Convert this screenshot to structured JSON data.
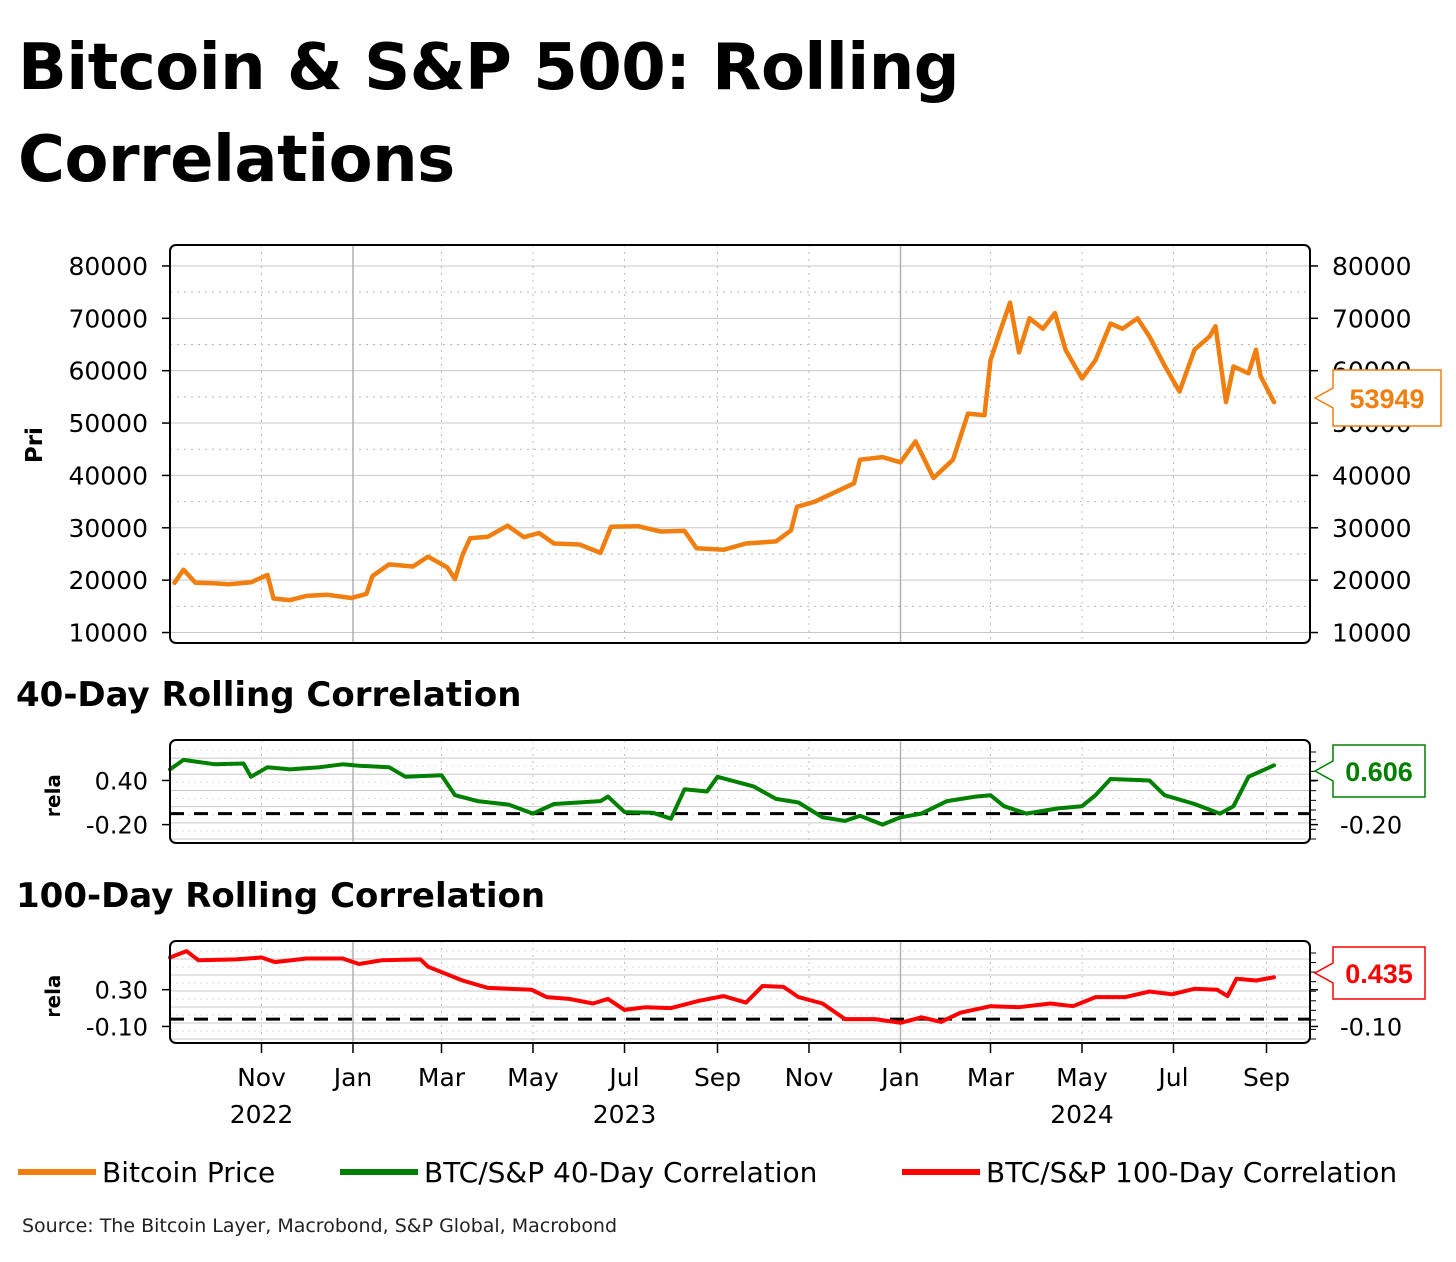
{
  "title": "Bitcoin & S&P 500: Rolling Correlations",
  "source": "Source: The Bitcoin Layer, Macrobond, S&P Global, Macrobond",
  "colors": {
    "bitcoin": "#f07f0f",
    "corr40": "#008000",
    "corr100": "#ff0000"
  },
  "legend": [
    {
      "label": "Bitcoin Price",
      "color": "#f07f0f"
    },
    {
      "label": "BTC/S&P 40-Day Correlation",
      "color": "#008000"
    },
    {
      "label": "BTC/S&P 100-Day Correlation",
      "color": "#ff0000"
    }
  ],
  "x_axis": {
    "months": [
      "Nov",
      "Jan",
      "Mar",
      "May",
      "Jul",
      "Sep",
      "Nov",
      "Jan",
      "Mar",
      "May",
      "Jul",
      "Sep"
    ],
    "month_dates": [
      "2022-11-01",
      "2023-01-01",
      "2023-03-01",
      "2023-05-01",
      "2023-07-01",
      "2023-09-01",
      "2023-11-01",
      "2024-01-01",
      "2024-03-01",
      "2024-05-01",
      "2024-07-01",
      "2024-09-01"
    ],
    "years": [
      {
        "label": "2022",
        "date": "2022-11-01"
      },
      {
        "label": "2023",
        "date": "2023-07-01"
      },
      {
        "label": "2024",
        "date": "2024-05-01"
      }
    ],
    "range": [
      "2022-09-01",
      "2024-09-30"
    ]
  },
  "chart_data": [
    {
      "type": "line",
      "ylabel": "Bitcoin Price, USD",
      "ylim": [
        8000,
        84000
      ],
      "yticks": [
        10000,
        20000,
        30000,
        40000,
        50000,
        60000,
        70000,
        80000
      ],
      "tick_labels": [
        "10000",
        "20000",
        "30000",
        "40000",
        "50000",
        "60000",
        "70000",
        "80000"
      ],
      "grid": true,
      "series": [
        {
          "name": "Bitcoin Price",
          "last_value_label": "53949",
          "points": [
            [
              "2022-09-04",
              19500
            ],
            [
              "2022-09-10",
              22000
            ],
            [
              "2022-09-18",
              19500
            ],
            [
              "2022-09-30",
              19400
            ],
            [
              "2022-10-10",
              19200
            ],
            [
              "2022-10-25",
              19600
            ],
            [
              "2022-11-05",
              21000
            ],
            [
              "2022-11-09",
              16500
            ],
            [
              "2022-11-20",
              16200
            ],
            [
              "2022-12-01",
              17000
            ],
            [
              "2022-12-15",
              17200
            ],
            [
              "2022-12-31",
              16600
            ],
            [
              "2023-01-10",
              17400
            ],
            [
              "2023-01-14",
              20800
            ],
            [
              "2023-01-25",
              23000
            ],
            [
              "2023-02-10",
              22600
            ],
            [
              "2023-02-20",
              24500
            ],
            [
              "2023-03-05",
              22400
            ],
            [
              "2023-03-10",
              20200
            ],
            [
              "2023-03-15",
              24800
            ],
            [
              "2023-03-20",
              28000
            ],
            [
              "2023-04-01",
              28300
            ],
            [
              "2023-04-14",
              30400
            ],
            [
              "2023-04-25",
              28200
            ],
            [
              "2023-05-05",
              29000
            ],
            [
              "2023-05-15",
              27000
            ],
            [
              "2023-06-01",
              26800
            ],
            [
              "2023-06-15",
              25200
            ],
            [
              "2023-06-22",
              30200
            ],
            [
              "2023-07-10",
              30300
            ],
            [
              "2023-07-25",
              29300
            ],
            [
              "2023-08-10",
              29400
            ],
            [
              "2023-08-18",
              26100
            ],
            [
              "2023-09-05",
              25800
            ],
            [
              "2023-09-20",
              27000
            ],
            [
              "2023-10-10",
              27400
            ],
            [
              "2023-10-20",
              29500
            ],
            [
              "2023-10-24",
              34000
            ],
            [
              "2023-11-05",
              35000
            ],
            [
              "2023-11-20",
              37000
            ],
            [
              "2023-12-01",
              38500
            ],
            [
              "2023-12-05",
              43000
            ],
            [
              "2023-12-20",
              43500
            ],
            [
              "2024-01-01",
              42500
            ],
            [
              "2024-01-11",
              46500
            ],
            [
              "2024-01-23",
              39500
            ],
            [
              "2024-02-05",
              43000
            ],
            [
              "2024-02-15",
              51800
            ],
            [
              "2024-02-26",
              51500
            ],
            [
              "2024-03-01",
              62000
            ],
            [
              "2024-03-08",
              68000
            ],
            [
              "2024-03-14",
              73000
            ],
            [
              "2024-03-20",
              63500
            ],
            [
              "2024-03-27",
              70000
            ],
            [
              "2024-04-05",
              68000
            ],
            [
              "2024-04-13",
              71000
            ],
            [
              "2024-04-20",
              64000
            ],
            [
              "2024-05-01",
              58500
            ],
            [
              "2024-05-10",
              62000
            ],
            [
              "2024-05-20",
              69000
            ],
            [
              "2024-05-28",
              68000
            ],
            [
              "2024-06-07",
              70000
            ],
            [
              "2024-06-15",
              66500
            ],
            [
              "2024-06-25",
              61000
            ],
            [
              "2024-07-05",
              56000
            ],
            [
              "2024-07-15",
              64000
            ],
            [
              "2024-07-25",
              66500
            ],
            [
              "2024-07-29",
              68500
            ],
            [
              "2024-08-05",
              54000
            ],
            [
              "2024-08-10",
              60800
            ],
            [
              "2024-08-20",
              59500
            ],
            [
              "2024-08-25",
              64000
            ],
            [
              "2024-08-28",
              59000
            ],
            [
              "2024-09-06",
              54000
            ]
          ]
        }
      ]
    },
    {
      "type": "line",
      "title": "40-Day Rolling Correlation",
      "ylabel": "correlation",
      "ylim": [
        -0.45,
        0.95
      ],
      "yticks": [
        0.4,
        -0.2
      ],
      "tick_labels": [
        "0.40",
        "-0.20"
      ],
      "reference_line": -0.05,
      "grid": true,
      "series": [
        {
          "name": "BTC/S&P 40-Day Correlation",
          "last_value_label": "0.606",
          "points": [
            [
              "2022-09-01",
              0.55
            ],
            [
              "2022-09-10",
              0.68
            ],
            [
              "2022-10-01",
              0.62
            ],
            [
              "2022-10-20",
              0.63
            ],
            [
              "2022-10-25",
              0.45
            ],
            [
              "2022-11-05",
              0.58
            ],
            [
              "2022-11-20",
              0.55
            ],
            [
              "2022-12-10",
              0.58
            ],
            [
              "2022-12-25",
              0.62
            ],
            [
              "2023-01-05",
              0.6
            ],
            [
              "2023-01-25",
              0.58
            ],
            [
              "2023-02-05",
              0.45
            ],
            [
              "2023-03-01",
              0.47
            ],
            [
              "2023-03-10",
              0.2
            ],
            [
              "2023-03-25",
              0.12
            ],
            [
              "2023-04-15",
              0.07
            ],
            [
              "2023-05-01",
              -0.05
            ],
            [
              "2023-05-15",
              0.08
            ],
            [
              "2023-06-15",
              0.12
            ],
            [
              "2023-06-20",
              0.18
            ],
            [
              "2023-07-01",
              -0.03
            ],
            [
              "2023-07-20",
              -0.04
            ],
            [
              "2023-08-01",
              -0.12
            ],
            [
              "2023-08-10",
              0.28
            ],
            [
              "2023-08-25",
              0.25
            ],
            [
              "2023-09-01",
              0.45
            ],
            [
              "2023-09-25",
              0.32
            ],
            [
              "2023-10-10",
              0.15
            ],
            [
              "2023-10-25",
              0.1
            ],
            [
              "2023-11-10",
              -0.1
            ],
            [
              "2023-11-25",
              -0.15
            ],
            [
              "2023-12-05",
              -0.08
            ],
            [
              "2023-12-20",
              -0.2
            ],
            [
              "2024-01-01",
              -0.1
            ],
            [
              "2024-01-15",
              -0.05
            ],
            [
              "2024-02-01",
              0.12
            ],
            [
              "2024-02-20",
              0.18
            ],
            [
              "2024-03-01",
              0.2
            ],
            [
              "2024-03-10",
              0.05
            ],
            [
              "2024-03-25",
              -0.05
            ],
            [
              "2024-04-15",
              0.02
            ],
            [
              "2024-05-01",
              0.05
            ],
            [
              "2024-05-10",
              0.2
            ],
            [
              "2024-05-20",
              0.42
            ],
            [
              "2024-06-15",
              0.4
            ],
            [
              "2024-06-25",
              0.2
            ],
            [
              "2024-07-15",
              0.08
            ],
            [
              "2024-08-01",
              -0.05
            ],
            [
              "2024-08-10",
              0.05
            ],
            [
              "2024-08-20",
              0.45
            ],
            [
              "2024-09-06",
              0.606
            ]
          ]
        }
      ]
    },
    {
      "type": "line",
      "title": "100-Day Rolling Correlation",
      "ylabel": "correlation",
      "ylim": [
        -0.28,
        0.83
      ],
      "yticks": [
        0.3,
        -0.1
      ],
      "tick_labels": [
        "0.30",
        "-0.10"
      ],
      "reference_line": -0.02,
      "grid": true,
      "series": [
        {
          "name": "BTC/S&P 100-Day Correlation",
          "last_value_label": "0.435",
          "points": [
            [
              "2022-09-01",
              0.65
            ],
            [
              "2022-09-12",
              0.72
            ],
            [
              "2022-09-20",
              0.62
            ],
            [
              "2022-10-15",
              0.63
            ],
            [
              "2022-11-01",
              0.65
            ],
            [
              "2022-11-10",
              0.6
            ],
            [
              "2022-12-01",
              0.64
            ],
            [
              "2022-12-25",
              0.64
            ],
            [
              "2023-01-05",
              0.58
            ],
            [
              "2023-01-20",
              0.62
            ],
            [
              "2023-02-15",
              0.63
            ],
            [
              "2023-02-20",
              0.55
            ],
            [
              "2023-03-15",
              0.4
            ],
            [
              "2023-04-01",
              0.32
            ],
            [
              "2023-04-30",
              0.3
            ],
            [
              "2023-05-10",
              0.22
            ],
            [
              "2023-05-25",
              0.2
            ],
            [
              "2023-06-10",
              0.15
            ],
            [
              "2023-06-20",
              0.2
            ],
            [
              "2023-07-01",
              0.08
            ],
            [
              "2023-07-15",
              0.11
            ],
            [
              "2023-08-01",
              0.1
            ],
            [
              "2023-08-20",
              0.18
            ],
            [
              "2023-09-05",
              0.23
            ],
            [
              "2023-09-20",
              0.16
            ],
            [
              "2023-10-01",
              0.34
            ],
            [
              "2023-10-15",
              0.33
            ],
            [
              "2023-10-25",
              0.22
            ],
            [
              "2023-11-10",
              0.15
            ],
            [
              "2023-11-25",
              -0.02
            ],
            [
              "2023-12-15",
              -0.02
            ],
            [
              "2024-01-01",
              -0.06
            ],
            [
              "2024-01-15",
              0.0
            ],
            [
              "2024-01-28",
              -0.05
            ],
            [
              "2024-02-10",
              0.05
            ],
            [
              "2024-03-01",
              0.12
            ],
            [
              "2024-03-20",
              0.11
            ],
            [
              "2024-04-10",
              0.15
            ],
            [
              "2024-04-25",
              0.12
            ],
            [
              "2024-05-10",
              0.22
            ],
            [
              "2024-05-30",
              0.22
            ],
            [
              "2024-06-15",
              0.28
            ],
            [
              "2024-06-30",
              0.25
            ],
            [
              "2024-07-15",
              0.31
            ],
            [
              "2024-07-30",
              0.3
            ],
            [
              "2024-08-06",
              0.23
            ],
            [
              "2024-08-12",
              0.42
            ],
            [
              "2024-08-25",
              0.4
            ],
            [
              "2024-09-06",
              0.435
            ]
          ]
        }
      ]
    }
  ]
}
